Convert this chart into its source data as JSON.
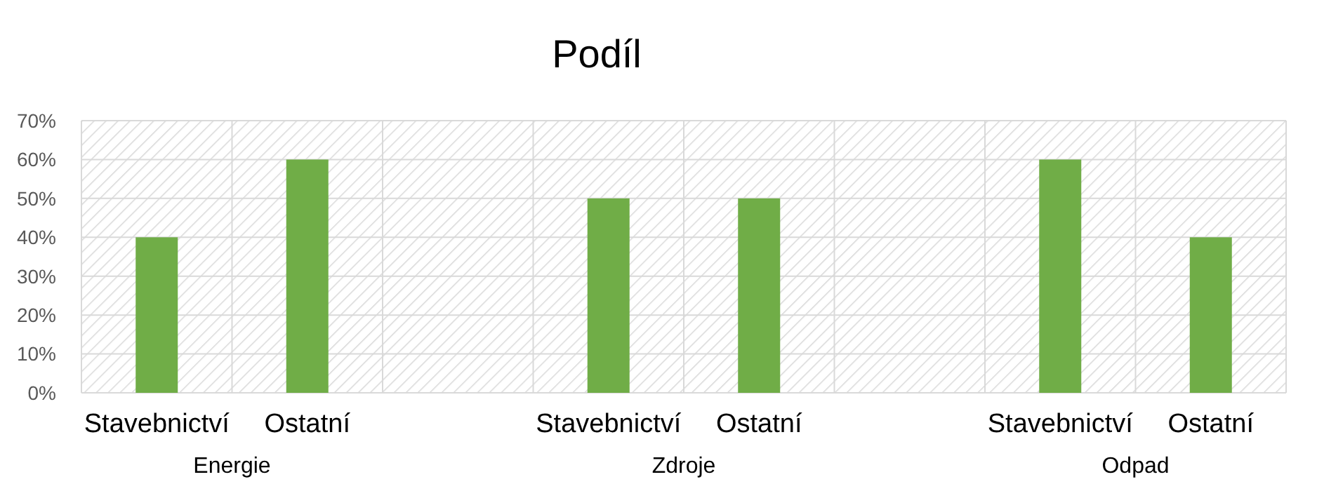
{
  "chart_data": {
    "type": "bar",
    "title": "Podíl",
    "categories": [
      "Stavebnictví",
      "Ostatní",
      null,
      "Stavebnictví",
      "Ostatní",
      null,
      "Stavebnictví",
      "Ostatní"
    ],
    "values": [
      40,
      60,
      null,
      50,
      50,
      null,
      60,
      40
    ],
    "color": "#70ad47",
    "ylim": [
      0,
      70
    ],
    "yticks": [
      {
        "value": 0,
        "label": "0%"
      },
      {
        "value": 10,
        "label": "10%"
      },
      {
        "value": 20,
        "label": "20%"
      },
      {
        "value": 30,
        "label": "30%"
      },
      {
        "value": 40,
        "label": "40%"
      },
      {
        "value": 50,
        "label": "50%"
      },
      {
        "value": 60,
        "label": "60%"
      },
      {
        "value": 70,
        "label": "70%"
      }
    ],
    "annotations": [
      "Energie",
      "Zdroje",
      "Odpad"
    ],
    "grid": true
  }
}
